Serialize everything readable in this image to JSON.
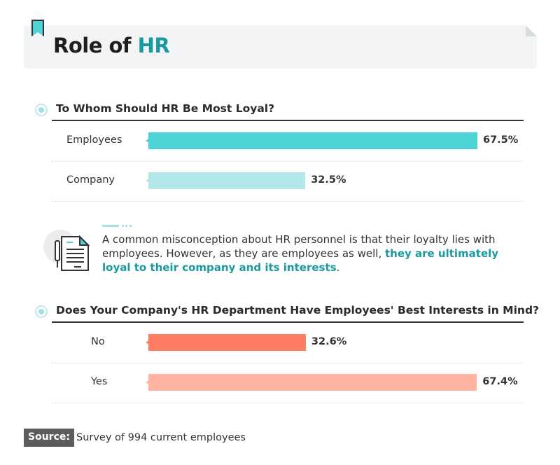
{
  "title": {
    "main": "Role of ",
    "highlight": "HR"
  },
  "chart_data": [
    {
      "type": "bar",
      "orientation": "horizontal",
      "title": "To Whom Should HR Be Most Loyal?",
      "categories": [
        "Employees",
        "Company"
      ],
      "values": [
        67.5,
        32.5
      ],
      "labels": [
        "67.5%",
        "32.5%"
      ],
      "colors": [
        "#4bd3d5",
        "#b3e6e8"
      ],
      "xlim": [
        0,
        100
      ]
    },
    {
      "type": "bar",
      "orientation": "horizontal",
      "title": "Does Your Company's HR Department Have Employees' Best Interests in Mind?",
      "categories": [
        "No",
        "Yes"
      ],
      "values": [
        32.6,
        67.4
      ],
      "labels": [
        "32.6%",
        "67.4%"
      ],
      "colors": [
        "#ff7b63",
        "#ffb3a0"
      ],
      "xlim": [
        0,
        100
      ]
    }
  ],
  "note": {
    "text": "A common misconception about HR personnel is that their loyalty lies with employees. However, as they are employees as well, ",
    "highlight": "they are ultimately loyal to their company and its interests",
    "end": ".",
    "icon": "document-pen-icon"
  },
  "source": {
    "label": "Source:",
    "text": "Survey of 994 current employees"
  }
}
